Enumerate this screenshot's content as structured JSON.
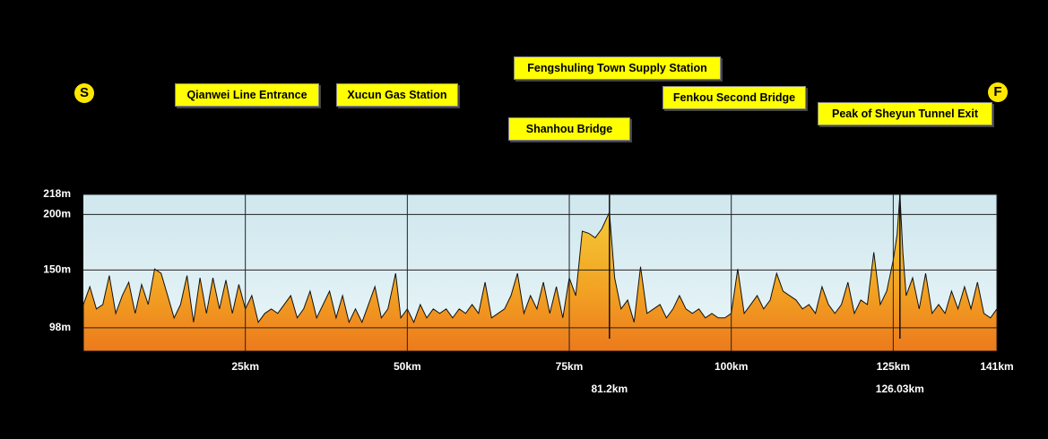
{
  "chart_data": {
    "type": "area",
    "start_label": "S",
    "finish_label": "F",
    "annotations": [
      "Qianwei Line Entrance",
      "Xucun Gas Station",
      "Fengshuling Town Supply Station",
      "Shanhou Bridge",
      "Fenkou Second Bridge",
      "Peak of Sheyun Tunnel Exit"
    ],
    "markers": [
      {
        "value": 81.2,
        "label": "81.2km"
      },
      {
        "value": 126.03,
        "label": "126.03km"
      }
    ],
    "x": [
      0,
      1,
      2,
      3,
      4,
      5,
      6,
      7,
      8,
      9,
      10,
      11,
      12,
      13,
      14,
      15,
      16,
      17,
      18,
      19,
      20,
      21,
      22,
      23,
      24,
      25,
      26,
      27,
      28,
      29,
      30,
      31,
      32,
      33,
      34,
      35,
      36,
      37,
      38,
      39,
      40,
      41,
      42,
      43,
      44,
      45,
      46,
      47,
      48.2,
      49,
      50,
      51,
      52,
      53,
      54,
      55,
      56,
      57,
      58,
      59,
      60,
      61,
      62,
      63,
      64,
      65,
      66,
      67,
      68,
      69,
      70,
      71,
      72,
      73,
      74,
      75,
      76,
      77,
      78,
      79,
      80,
      81.2,
      82,
      83,
      84,
      85,
      86,
      87,
      88,
      89,
      90,
      91,
      92,
      93,
      94,
      95,
      96,
      97,
      98,
      99,
      100,
      101,
      102,
      103,
      104,
      105,
      106,
      107,
      108,
      109,
      110,
      111,
      112,
      113,
      114,
      115,
      116,
      117,
      118,
      119,
      120,
      121,
      122,
      123,
      124,
      125,
      125.6,
      126.03,
      126.5,
      127,
      128,
      129,
      130,
      131,
      132,
      133,
      134,
      135,
      136,
      137,
      138,
      139,
      140,
      141
    ],
    "series": [
      {
        "color": "#f2a323",
        "values": [
          119,
          135,
          115,
          119,
          145,
          111,
          127,
          139,
          111,
          137,
          119,
          151,
          147,
          127,
          107,
          119,
          145,
          103,
          143,
          111,
          143,
          115,
          141,
          111,
          137,
          115,
          127,
          103,
          111,
          115,
          111,
          119,
          127,
          107,
          115,
          131,
          107,
          119,
          131,
          107,
          127,
          103,
          115,
          103,
          119,
          135,
          107,
          115,
          147,
          107,
          115,
          103,
          119,
          107,
          115,
          111,
          115,
          107,
          115,
          111,
          119,
          111,
          139,
          107,
          111,
          115,
          127,
          147,
          111,
          127,
          115,
          139,
          111,
          135,
          107,
          143,
          127,
          185,
          183,
          179,
          187,
          202,
          143,
          115,
          123,
          103,
          153,
          111,
          115,
          119,
          107,
          115,
          127,
          115,
          111,
          115,
          107,
          111,
          107,
          107,
          111,
          151,
          111,
          119,
          127,
          115,
          123,
          147,
          131,
          127,
          123,
          115,
          119,
          111,
          135,
          119,
          111,
          119,
          139,
          111,
          123,
          119,
          166,
          119,
          131,
          159,
          182,
          218,
          165,
          127,
          143,
          115,
          147,
          111,
          119,
          111,
          131,
          115,
          135,
          115,
          139,
          111,
          107,
          115
        ]
      }
    ],
    "xlim": [
      0,
      141
    ],
    "ylim": [
      77,
      218
    ],
    "xticks": [
      {
        "value": 25,
        "label": "25km"
      },
      {
        "value": 50,
        "label": "50km"
      },
      {
        "value": 75,
        "label": "75km"
      },
      {
        "value": 100,
        "label": "100km"
      },
      {
        "value": 125,
        "label": "125km"
      },
      {
        "value": 141,
        "label": "141km"
      }
    ],
    "yticks": [
      {
        "value": 98,
        "label": "98m"
      },
      {
        "value": 150,
        "label": "150m"
      },
      {
        "value": 200,
        "label": "200m"
      },
      {
        "value": 218,
        "label": "218m"
      }
    ],
    "grid": true
  }
}
